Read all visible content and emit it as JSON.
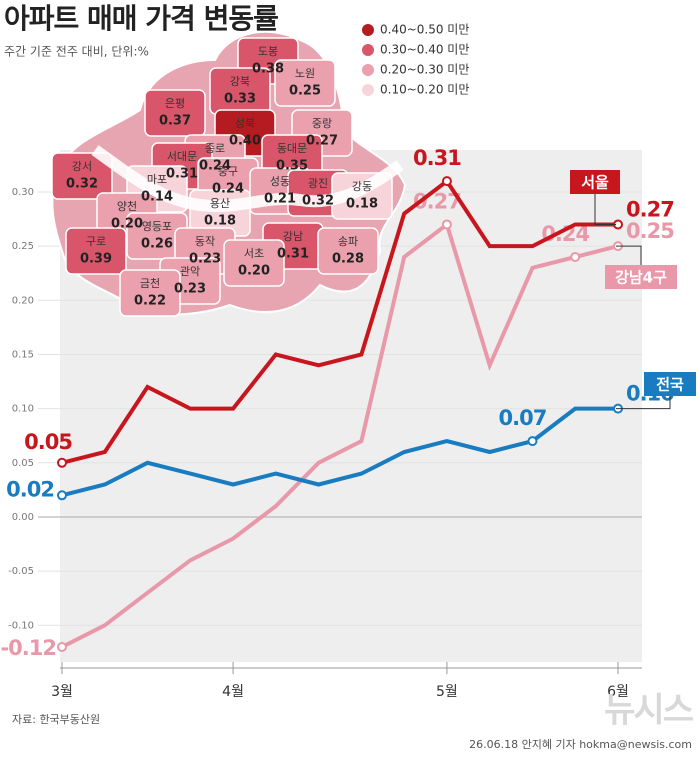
{
  "header": {
    "title": "아파트 매매 가격 변동률",
    "subtitle": "주간 기준 전주 대비, 단위:%"
  },
  "chart_data": {
    "type": "line",
    "categories": [
      "3월",
      null,
      null,
      null,
      "4월",
      null,
      null,
      null,
      null,
      "5월",
      null,
      null,
      null,
      "6월"
    ],
    "series": [
      {
        "name": "서울",
        "color": "#c8161e",
        "values": [
          0.05,
          0.06,
          0.12,
          0.1,
          0.1,
          0.15,
          0.14,
          0.15,
          0.28,
          0.31,
          0.25,
          0.25,
          0.27,
          0.27
        ],
        "value_labels": [
          "0.05",
          null,
          null,
          null,
          null,
          null,
          null,
          null,
          null,
          "0.31",
          null,
          null,
          null,
          "0.27"
        ]
      },
      {
        "name": "강남4구",
        "color": "#e898a8",
        "values": [
          -0.12,
          -0.1,
          -0.07,
          -0.04,
          -0.02,
          0.01,
          0.05,
          0.07,
          0.24,
          0.27,
          0.14,
          0.23,
          0.24,
          0.25
        ],
        "value_labels": [
          "-0.12",
          null,
          null,
          null,
          null,
          null,
          null,
          null,
          null,
          "0.27",
          null,
          null,
          "0.24",
          "0.25"
        ]
      },
      {
        "name": "전국",
        "color": "#1a7cc0",
        "values": [
          0.02,
          0.03,
          0.05,
          0.04,
          0.03,
          0.04,
          0.03,
          0.04,
          0.06,
          0.07,
          0.06,
          0.07,
          0.1,
          0.1
        ],
        "value_labels": [
          "0.02",
          null,
          null,
          null,
          null,
          null,
          null,
          null,
          null,
          null,
          null,
          "0.07",
          null,
          "0.10"
        ]
      }
    ],
    "ylim": [
      -0.13,
      0.32
    ],
    "yticks": [
      {
        "value": 0.3,
        "label": "0.30"
      },
      0.25,
      {
        "value": 0.2,
        "label": "0.20"
      },
      0.15,
      {
        "value": 0.1,
        "label": "0.10"
      },
      0.05,
      {
        "value": 0,
        "label": "0.00"
      },
      {
        "value": -0.05,
        "label": "-0.05"
      },
      {
        "value": -0.1,
        "label": "-0.10"
      }
    ],
    "grid": true
  },
  "map": {
    "legend": [
      {
        "label": "0.40~0.50 미만",
        "color": "#b51c22"
      },
      {
        "label": "0.30~0.40 미만",
        "color": "#d9566a"
      },
      {
        "label": "0.20~0.30 미만",
        "color": "#eba0ae"
      },
      {
        "label": "0.10~0.20 미만",
        "color": "#f7d4da"
      }
    ],
    "districts": [
      {
        "name": "도봉",
        "value": "0.38",
        "color": "#d9566a"
      },
      {
        "name": "강북",
        "value": "0.33",
        "color": "#d9566a"
      },
      {
        "name": "노원",
        "value": "0.25",
        "color": "#eba0ae"
      },
      {
        "name": "은평",
        "value": "0.37",
        "color": "#d9566a"
      },
      {
        "name": "성북",
        "value": "0.40",
        "color": "#b51c22"
      },
      {
        "name": "중랑",
        "value": "0.27",
        "color": "#eba0ae"
      },
      {
        "name": "종로",
        "value": "0.24",
        "color": "#eba0ae"
      },
      {
        "name": "동대문",
        "value": "0.35",
        "color": "#d9566a"
      },
      {
        "name": "서대문",
        "value": "0.31",
        "color": "#d9566a"
      },
      {
        "name": "강서",
        "value": "0.32",
        "color": "#d9566a"
      },
      {
        "name": "마포",
        "value": "0.14",
        "color": "#f7d4da"
      },
      {
        "name": "중구",
        "value": "0.24",
        "color": "#eba0ae"
      },
      {
        "name": "성동",
        "value": "0.21",
        "color": "#eba0ae"
      },
      {
        "name": "광진",
        "value": "0.32",
        "color": "#d9566a"
      },
      {
        "name": "강동",
        "value": "0.18",
        "color": "#f7d4da"
      },
      {
        "name": "용산",
        "value": "0.18",
        "color": "#f7d4da"
      },
      {
        "name": "양천",
        "value": "0.20",
        "color": "#eba0ae"
      },
      {
        "name": "영등포",
        "value": "0.26",
        "color": "#eba0ae"
      },
      {
        "name": "동작",
        "value": "0.23",
        "color": "#eba0ae"
      },
      {
        "name": "강남",
        "value": "0.31",
        "color": "#d9566a"
      },
      {
        "name": "송파",
        "value": "0.28",
        "color": "#eba0ae"
      },
      {
        "name": "구로",
        "value": "0.39",
        "color": "#d9566a"
      },
      {
        "name": "서초",
        "value": "0.20",
        "color": "#eba0ae"
      },
      {
        "name": "관악",
        "value": "0.23",
        "color": "#eba0ae"
      },
      {
        "name": "금천",
        "value": "0.22",
        "color": "#eba0ae"
      }
    ]
  },
  "footer": {
    "source": "자료: 한국부동산원",
    "credit": "26.06.18 안지혜 기자 hokma@newsis.com",
    "watermark": "뉴시스"
  }
}
